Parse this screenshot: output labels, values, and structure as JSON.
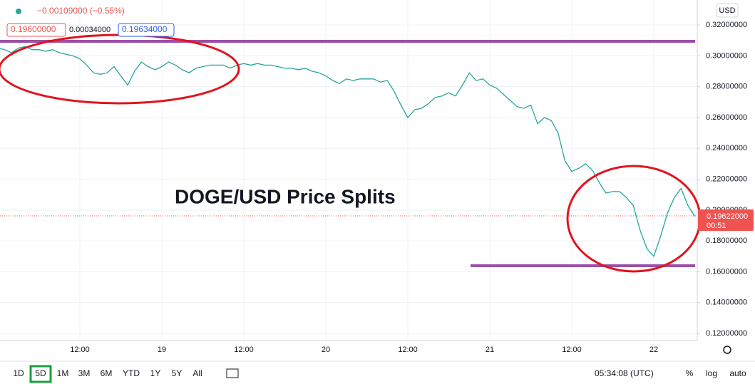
{
  "chart_data": {
    "type": "line",
    "title": "DOGE/USD Price Splits",
    "change": "−0.00109000 (−0.55%)",
    "quotes": [
      "0.19600000",
      "0.00034000",
      "0.19634000"
    ],
    "currency": "USD",
    "current_price": {
      "value": 0.19622,
      "label": "0.19622000"
    },
    "countdown": "00:51",
    "clock": "05:34:08 (UTC)",
    "ranges": [
      "1D",
      "5D",
      "1M",
      "3M",
      "6M",
      "YTD",
      "1Y",
      "5Y",
      "All"
    ],
    "selected_range": 1,
    "scale_options": [
      "%",
      "log",
      "auto"
    ],
    "categories": [
      null,
      null,
      null,
      null,
      null,
      null,
      null,
      null,
      null,
      null,
      null,
      null,
      "12:00",
      null,
      null,
      null,
      null,
      null,
      null,
      null,
      null,
      null,
      null,
      null,
      "19",
      null,
      null,
      null,
      null,
      null,
      null,
      null,
      null,
      null,
      null,
      null,
      "12:00",
      null,
      null,
      null,
      null,
      null,
      null,
      null,
      null,
      null,
      null,
      null,
      "20",
      null,
      null,
      null,
      null,
      null,
      null,
      null,
      null,
      null,
      null,
      null,
      "12:00",
      null,
      null,
      null,
      null,
      null,
      null,
      null,
      null,
      null,
      null,
      null,
      "21",
      null,
      null,
      null,
      null,
      null,
      null,
      null,
      null,
      null,
      null,
      null,
      "12:00",
      null,
      null,
      null,
      null,
      null,
      null,
      null,
      null,
      null,
      null,
      null,
      "22",
      null,
      null,
      null,
      null,
      null,
      null
    ],
    "values": [
      0.305,
      0.304,
      0.302,
      0.305,
      0.306,
      0.304,
      0.304,
      0.303,
      0.304,
      0.302,
      0.301,
      0.3,
      0.298,
      0.294,
      0.289,
      0.288,
      0.289,
      0.293,
      0.287,
      0.281,
      0.29,
      0.296,
      0.293,
      0.291,
      0.293,
      0.296,
      0.294,
      0.291,
      0.289,
      0.292,
      0.293,
      0.294,
      0.294,
      0.294,
      0.292,
      0.294,
      0.295,
      0.294,
      0.295,
      0.294,
      0.294,
      0.293,
      0.292,
      0.292,
      0.291,
      0.292,
      0.29,
      0.289,
      0.287,
      0.284,
      0.282,
      0.285,
      0.284,
      0.285,
      0.285,
      0.285,
      0.283,
      0.284,
      0.277,
      0.268,
      0.26,
      0.265,
      0.266,
      0.269,
      0.273,
      0.274,
      0.276,
      0.274,
      0.281,
      0.289,
      0.284,
      0.285,
      0.281,
      0.279,
      0.275,
      0.271,
      0.267,
      0.266,
      0.268,
      0.256,
      0.26,
      0.258,
      0.25,
      0.232,
      0.225,
      0.227,
      0.23,
      0.226,
      0.218,
      0.211,
      0.212,
      0.212,
      0.208,
      0.203,
      0.187,
      0.175,
      0.17,
      0.183,
      0.198,
      0.208,
      0.214,
      0.203,
      0.196
    ],
    "color": "#26a69a",
    "levels": [
      {
        "value": 0.3094,
        "color": "#9b4fa8"
      },
      {
        "value": 0.1639,
        "color": "#9b4fa8"
      }
    ],
    "ylim": [
      0.1154,
      0.3362
    ],
    "yticks": [
      {
        "value": 0.12,
        "label": "0.12000000"
      },
      {
        "value": 0.14,
        "label": "0.14000000"
      },
      {
        "value": 0.16,
        "label": "0.16000000"
      },
      {
        "value": 0.18,
        "label": "0.18000000"
      },
      {
        "value": 0.2,
        "label": "0.20000000"
      },
      {
        "value": 0.22,
        "label": "0.22000000"
      },
      {
        "value": 0.24,
        "label": "0.24000000"
      },
      {
        "value": 0.26,
        "label": "0.26000000"
      },
      {
        "value": 0.28,
        "label": "0.28000000"
      },
      {
        "value": 0.3,
        "label": "0.30000000"
      },
      {
        "value": 0.32,
        "label": "0.32000000"
      }
    ],
    "grid": true
  }
}
